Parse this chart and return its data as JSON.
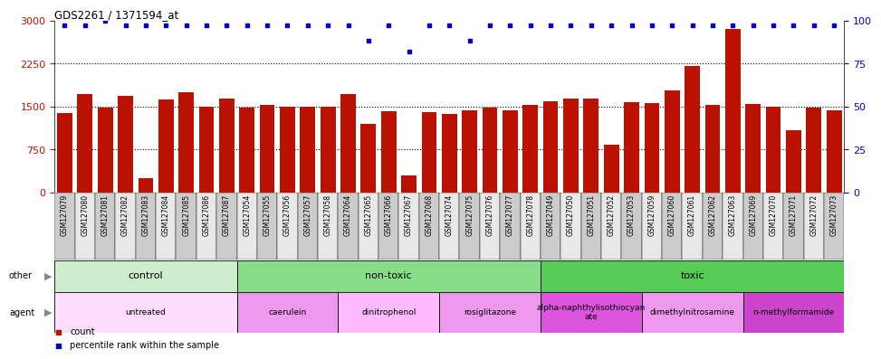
{
  "title": "GDS2261 / 1371594_at",
  "samples": [
    "GSM127079",
    "GSM127080",
    "GSM127081",
    "GSM127082",
    "GSM127083",
    "GSM127084",
    "GSM127085",
    "GSM127086",
    "GSM127087",
    "GSM127054",
    "GSM127055",
    "GSM127056",
    "GSM127057",
    "GSM127058",
    "GSM127064",
    "GSM127065",
    "GSM127066",
    "GSM127067",
    "GSM127068",
    "GSM127074",
    "GSM127075",
    "GSM127076",
    "GSM127077",
    "GSM127078",
    "GSM127049",
    "GSM127050",
    "GSM127051",
    "GSM127052",
    "GSM127053",
    "GSM127059",
    "GSM127060",
    "GSM127061",
    "GSM127062",
    "GSM127063",
    "GSM127069",
    "GSM127070",
    "GSM127071",
    "GSM127072",
    "GSM127073"
  ],
  "counts": [
    1380,
    1720,
    1480,
    1680,
    250,
    1620,
    1750,
    1490,
    1640,
    1480,
    1530,
    1490,
    1490,
    1490,
    1720,
    1190,
    1420,
    300,
    1400,
    1370,
    1430,
    1480,
    1430,
    1530,
    1590,
    1630,
    1630,
    830,
    1570,
    1560,
    1780,
    2200,
    1530,
    2850,
    1540,
    1490,
    1080,
    1480,
    1430
  ],
  "percentile": [
    97,
    97,
    100,
    97,
    97,
    97,
    97,
    97,
    97,
    97,
    97,
    97,
    97,
    97,
    97,
    88,
    97,
    82,
    97,
    97,
    88,
    97,
    97,
    97,
    97,
    97,
    97,
    97,
    97,
    97,
    97,
    97,
    97,
    97,
    97,
    97,
    97,
    97,
    97
  ],
  "ylim_left": [
    0,
    3000
  ],
  "yticks_left": [
    0,
    750,
    1500,
    2250,
    3000
  ],
  "yticks_right": [
    0,
    25,
    50,
    75,
    100
  ],
  "bar_color": "#bb1100",
  "dot_color": "#0000cc",
  "bg_color": "#ffffff",
  "groups_other": [
    {
      "label": "control",
      "start": 0,
      "end": 9,
      "color": "#cceecc"
    },
    {
      "label": "non-toxic",
      "start": 9,
      "end": 24,
      "color": "#88dd88"
    },
    {
      "label": "toxic",
      "start": 24,
      "end": 39,
      "color": "#55cc55"
    }
  ],
  "groups_agent": [
    {
      "label": "untreated",
      "start": 0,
      "end": 9,
      "color": "#ffddff"
    },
    {
      "label": "caerulein",
      "start": 9,
      "end": 14,
      "color": "#ee99ee"
    },
    {
      "label": "dinitrophenol",
      "start": 14,
      "end": 19,
      "color": "#ffbbff"
    },
    {
      "label": "rosiglitazone",
      "start": 19,
      "end": 24,
      "color": "#ee99ee"
    },
    {
      "label": "alpha-naphthylisothiocyan\nate",
      "start": 24,
      "end": 29,
      "color": "#dd55dd"
    },
    {
      "label": "dimethylnitrosamine",
      "start": 29,
      "end": 34,
      "color": "#ee99ee"
    },
    {
      "label": "n-methylformamide",
      "start": 34,
      "end": 39,
      "color": "#cc44cc"
    }
  ],
  "row_label_other": "other",
  "row_label_agent": "agent",
  "legend_count": "count",
  "legend_pct": "percentile rank within the sample"
}
